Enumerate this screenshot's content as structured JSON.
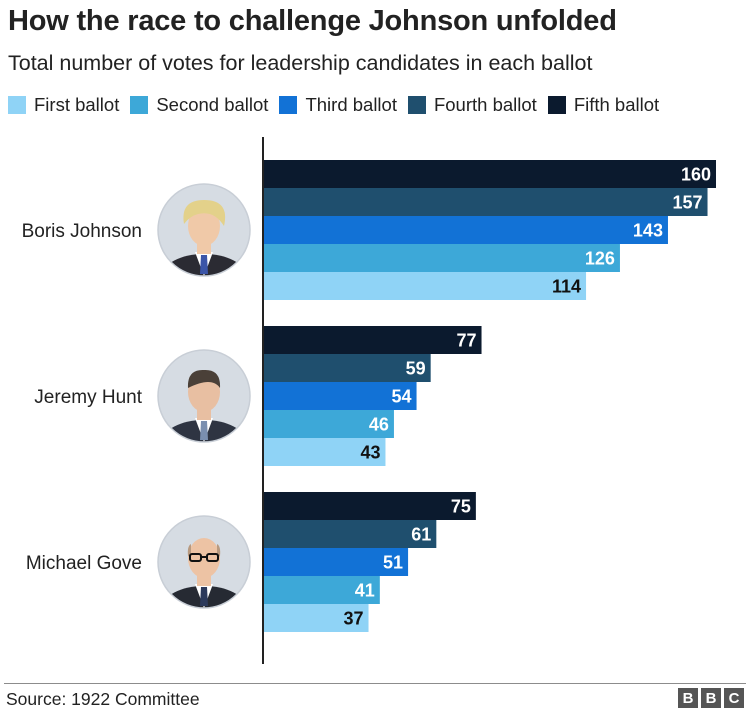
{
  "chart_data": {
    "type": "bar",
    "orientation": "horizontal",
    "title": "How the race to challenge Johnson unfolded",
    "subtitle": "Total number of votes for leadership candidates in each ballot",
    "categories": [
      "Boris Johnson",
      "Jeremy Hunt",
      "Michael Gove"
    ],
    "series": [
      {
        "name": "Fifth ballot",
        "color": "#0b1a2e",
        "values": [
          160,
          77,
          75
        ]
      },
      {
        "name": "Fourth ballot",
        "color": "#1f4f6e",
        "values": [
          157,
          59,
          61
        ]
      },
      {
        "name": "Third ballot",
        "color": "#1272d6",
        "values": [
          143,
          54,
          51
        ]
      },
      {
        "name": "Second ballot",
        "color": "#3da8d8",
        "values": [
          126,
          46,
          41
        ]
      },
      {
        "name": "First ballot",
        "color": "#8fd3f6",
        "values": [
          114,
          43,
          37
        ]
      }
    ],
    "legend_order": [
      "First ballot",
      "Second ballot",
      "Third ballot",
      "Fourth ballot",
      "Fifth ballot"
    ],
    "legend_placement": "top-left",
    "data_labels": true,
    "grid": false,
    "xlim": [
      0,
      160
    ]
  },
  "avatars": [
    {
      "candidate": "Boris Johnson",
      "icon": "portrait-boris-johnson-icon"
    },
    {
      "candidate": "Jeremy Hunt",
      "icon": "portrait-jeremy-hunt-icon"
    },
    {
      "candidate": "Michael Gove",
      "icon": "portrait-michael-gove-icon"
    }
  ],
  "footer": {
    "source": "Source: 1922 Committee",
    "logo": [
      "B",
      "B",
      "C"
    ]
  }
}
